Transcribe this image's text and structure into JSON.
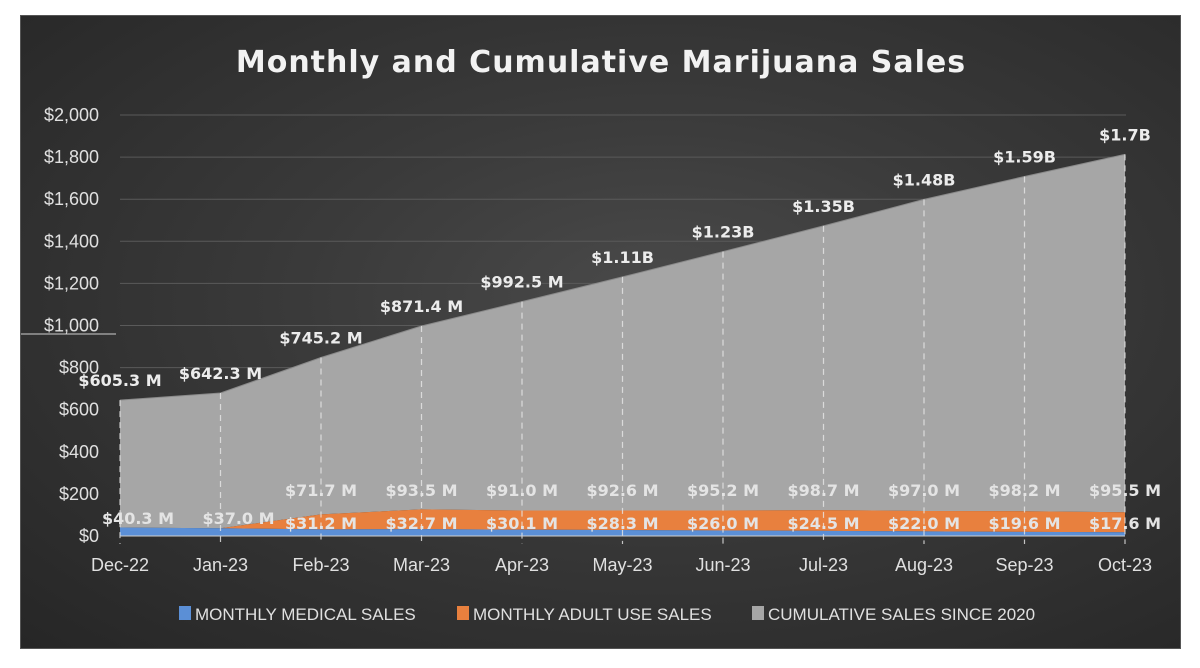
{
  "chart_data": {
    "type": "area",
    "stacked": true,
    "title": "Monthly and Cumulative Marijuana Sales",
    "xlabel": "",
    "ylabel": "",
    "categories": [
      "Dec-22",
      "Jan-23",
      "Feb-23",
      "Mar-23",
      "Apr-23",
      "May-23",
      "Jun-23",
      "Jul-23",
      "Aug-23",
      "Sep-23",
      "Oct-23"
    ],
    "ylim": [
      0,
      2000
    ],
    "yticks": [
      0,
      200,
      400,
      600,
      800,
      1000,
      1200,
      1400,
      1600,
      1800,
      2000
    ],
    "ytick_labels": [
      "$0",
      "$200",
      "$400",
      "$600",
      "$800",
      "$1,000",
      "$1,200",
      "$1,400",
      "$1,600",
      "$1,800",
      "$2,000"
    ],
    "grid": true,
    "legend_position": "bottom",
    "series": [
      {
        "name": "MONTHLY MEDICAL SALES",
        "color": "#5b8fd6",
        "values": [
          40.3,
          37.0,
          31.2,
          32.7,
          30.1,
          28.3,
          26.0,
          24.5,
          22.0,
          19.6,
          17.6
        ],
        "labels": [
          "$40.3 M",
          "$37.0 M",
          "$31.2 M",
          "$32.7 M",
          "$30.1 M",
          "$28.3 M",
          "$26.0 M",
          "$24.5 M",
          "$22.0 M",
          "$19.6 M",
          "$17.6 M"
        ]
      },
      {
        "name": "MONTHLY ADULT USE SALES",
        "color": "#e8803e",
        "values": [
          0,
          0,
          71.7,
          93.5,
          91.0,
          92.6,
          95.2,
          98.7,
          97.0,
          98.2,
          95.5
        ],
        "labels": [
          "",
          "",
          "$71.7 M",
          "$93.5 M",
          "$91.0 M",
          "$92.6 M",
          "$95.2 M",
          "$98.7 M",
          "$97.0 M",
          "$98.2 M",
          "$95.5 M"
        ]
      },
      {
        "name": "CUMULATIVE SALES SINCE 2020",
        "color": "#a6a6a6",
        "values": [
          605.3,
          642.3,
          745.2,
          871.4,
          992.5,
          1110,
          1230,
          1350,
          1480,
          1590,
          1700
        ],
        "labels": [
          "$605.3 M",
          "$642.3 M",
          "$745.2 M",
          "$871.4 M",
          "$992.5 M",
          "$1.11B",
          "$1.23B",
          "$1.35B",
          "$1.48B",
          "$1.59B",
          "$1.7B"
        ]
      }
    ]
  }
}
